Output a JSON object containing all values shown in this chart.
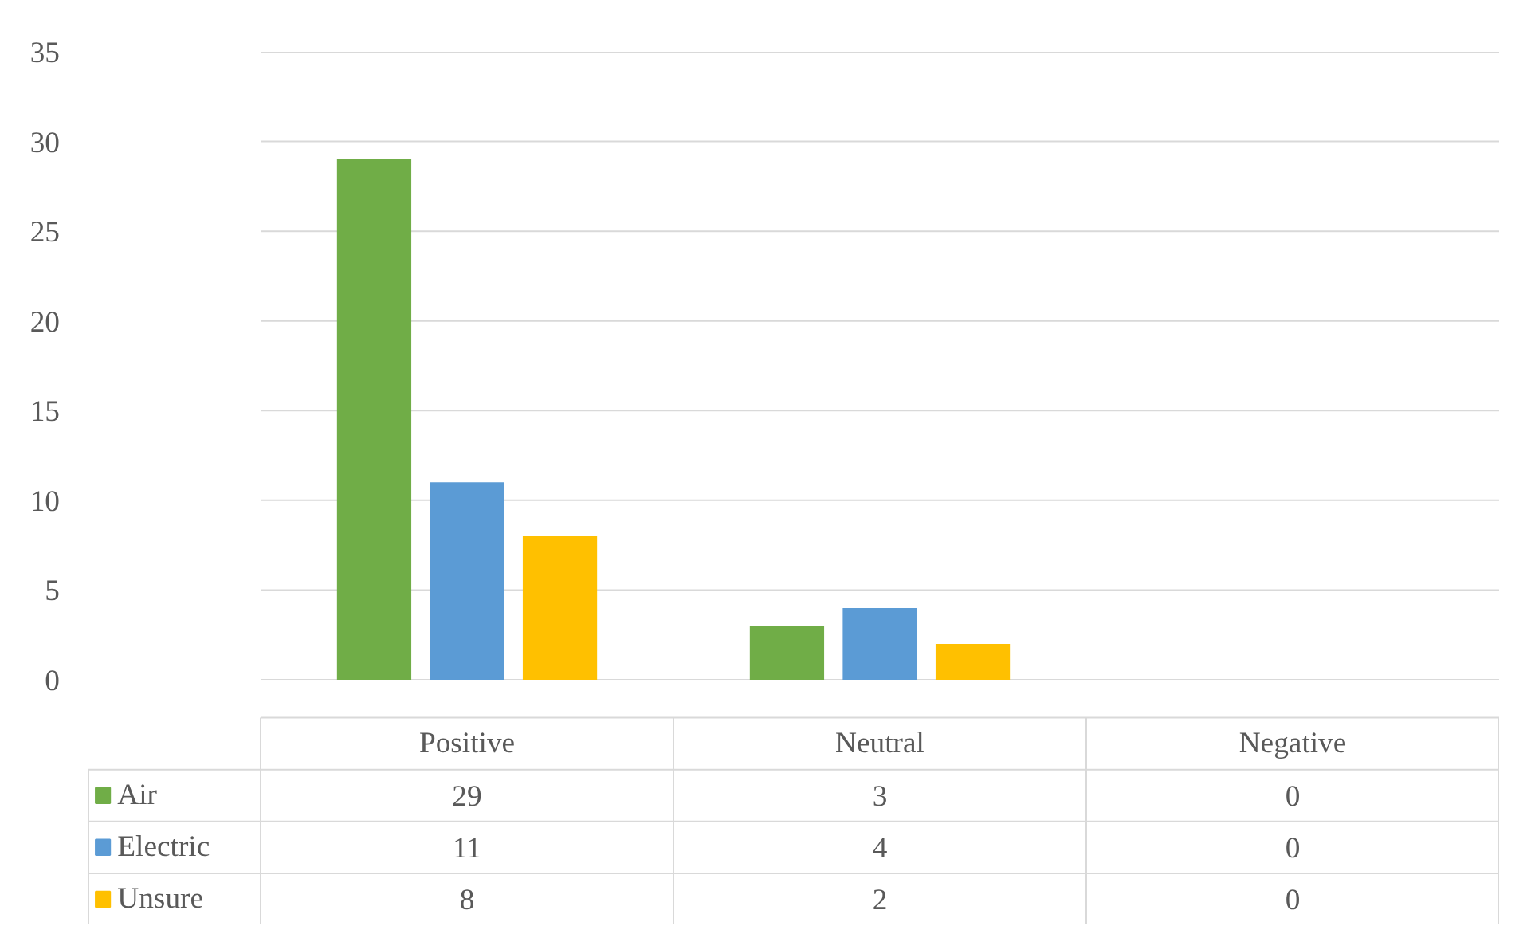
{
  "chart_data": {
    "type": "bar",
    "categories": [
      "Positive",
      "Neutral",
      "Negative"
    ],
    "series": [
      {
        "name": "Air",
        "color": "#70ad47",
        "values": [
          29,
          3,
          0
        ]
      },
      {
        "name": "Electric",
        "color": "#5b9bd5",
        "values": [
          11,
          4,
          0
        ]
      },
      {
        "name": "Unsure",
        "color": "#ffc000",
        "values": [
          8,
          2,
          0
        ]
      }
    ],
    "ylim": [
      0,
      35
    ],
    "yticks": [
      0,
      5,
      10,
      15,
      20,
      25,
      30,
      35
    ],
    "grid": "y",
    "legend": "bottom",
    "data_labels": true
  }
}
